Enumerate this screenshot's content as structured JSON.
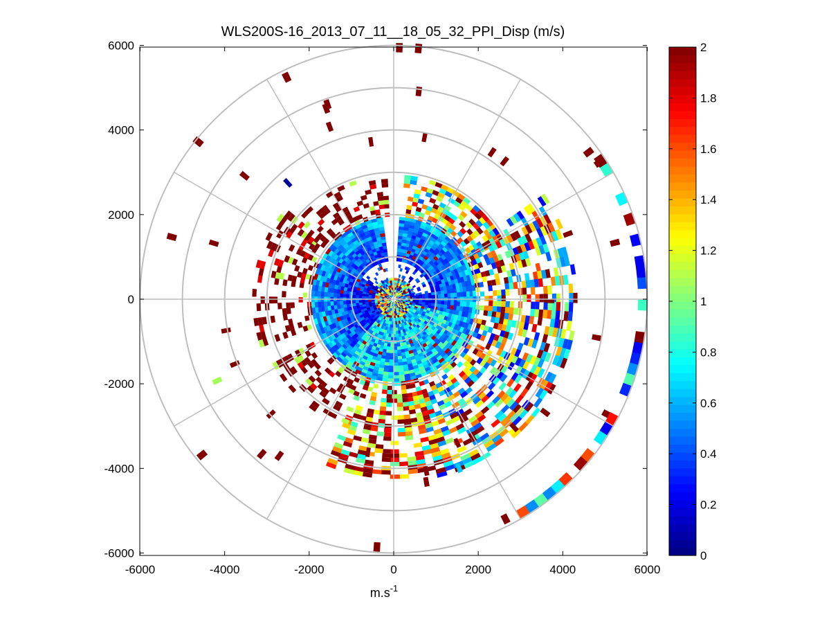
{
  "chart_data": {
    "type": "heatmap",
    "subtype": "polar-ppi",
    "title": "WLS200S-16_2013_07_11__18_05_32_PPI_Disp (m/s)",
    "xlabel_base": "m.s",
    "xlabel_exp": "-1",
    "ylabel": "",
    "xlim": [
      -6000,
      6000
    ],
    "ylim": [
      -6000,
      6000
    ],
    "x_ticks": [
      -6000,
      -4000,
      -2000,
      0,
      2000,
      4000,
      6000
    ],
    "y_ticks": [
      -6000,
      -4000,
      -2000,
      0,
      2000,
      4000,
      6000
    ],
    "polar_ring_radii": [
      1000,
      2000,
      3000,
      4000,
      5000,
      6000
    ],
    "polar_spoke_angles_deg": [
      0,
      30,
      60,
      90,
      120,
      150,
      180,
      210,
      240,
      270,
      300,
      330
    ],
    "colorbar": {
      "colormap": "jet",
      "clim": [
        0,
        2
      ],
      "ticks": [
        "0",
        "0.2",
        "0.4",
        "0.6",
        "0.8",
        "1",
        "1.2",
        "1.4",
        "1.6",
        "1.8",
        "2"
      ]
    },
    "inner_disc": {
      "range_m": [
        0,
        450
      ],
      "value_mean": 0.9,
      "noisy": true
    },
    "inner_annulus": {
      "range_m": [
        450,
        1950
      ],
      "value_mean": 0.5
    },
    "scan_sectors": [
      {
        "azimuth_deg": [
          300,
          355
        ],
        "range_m": [
          1950,
          2900
        ],
        "dominant_value": 2.0
      },
      {
        "azimuth_deg": [
          5,
          60
        ],
        "range_m": [
          1950,
          2900
        ],
        "dominant_value": 1.1
      },
      {
        "azimuth_deg": [
          55,
          165
        ],
        "range_m": [
          1950,
          4300
        ],
        "dominant_value": 0.9
      },
      {
        "azimuth_deg": [
          160,
          200
        ],
        "range_m": [
          1950,
          4200
        ],
        "dominant_value": 1.4
      },
      {
        "azimuth_deg": [
          200,
          240
        ],
        "range_m": [
          1950,
          3200
        ],
        "dominant_value": 2.0
      },
      {
        "azimuth_deg": [
          250,
          310
        ],
        "range_m": [
          1950,
          3300
        ],
        "dominant_value": 2.0
      }
    ],
    "outer_arc": {
      "azimuth_deg": [
        55,
        150
      ],
      "range_m": [
        5900,
        6000
      ],
      "dominant_value": 0.6
    }
  }
}
